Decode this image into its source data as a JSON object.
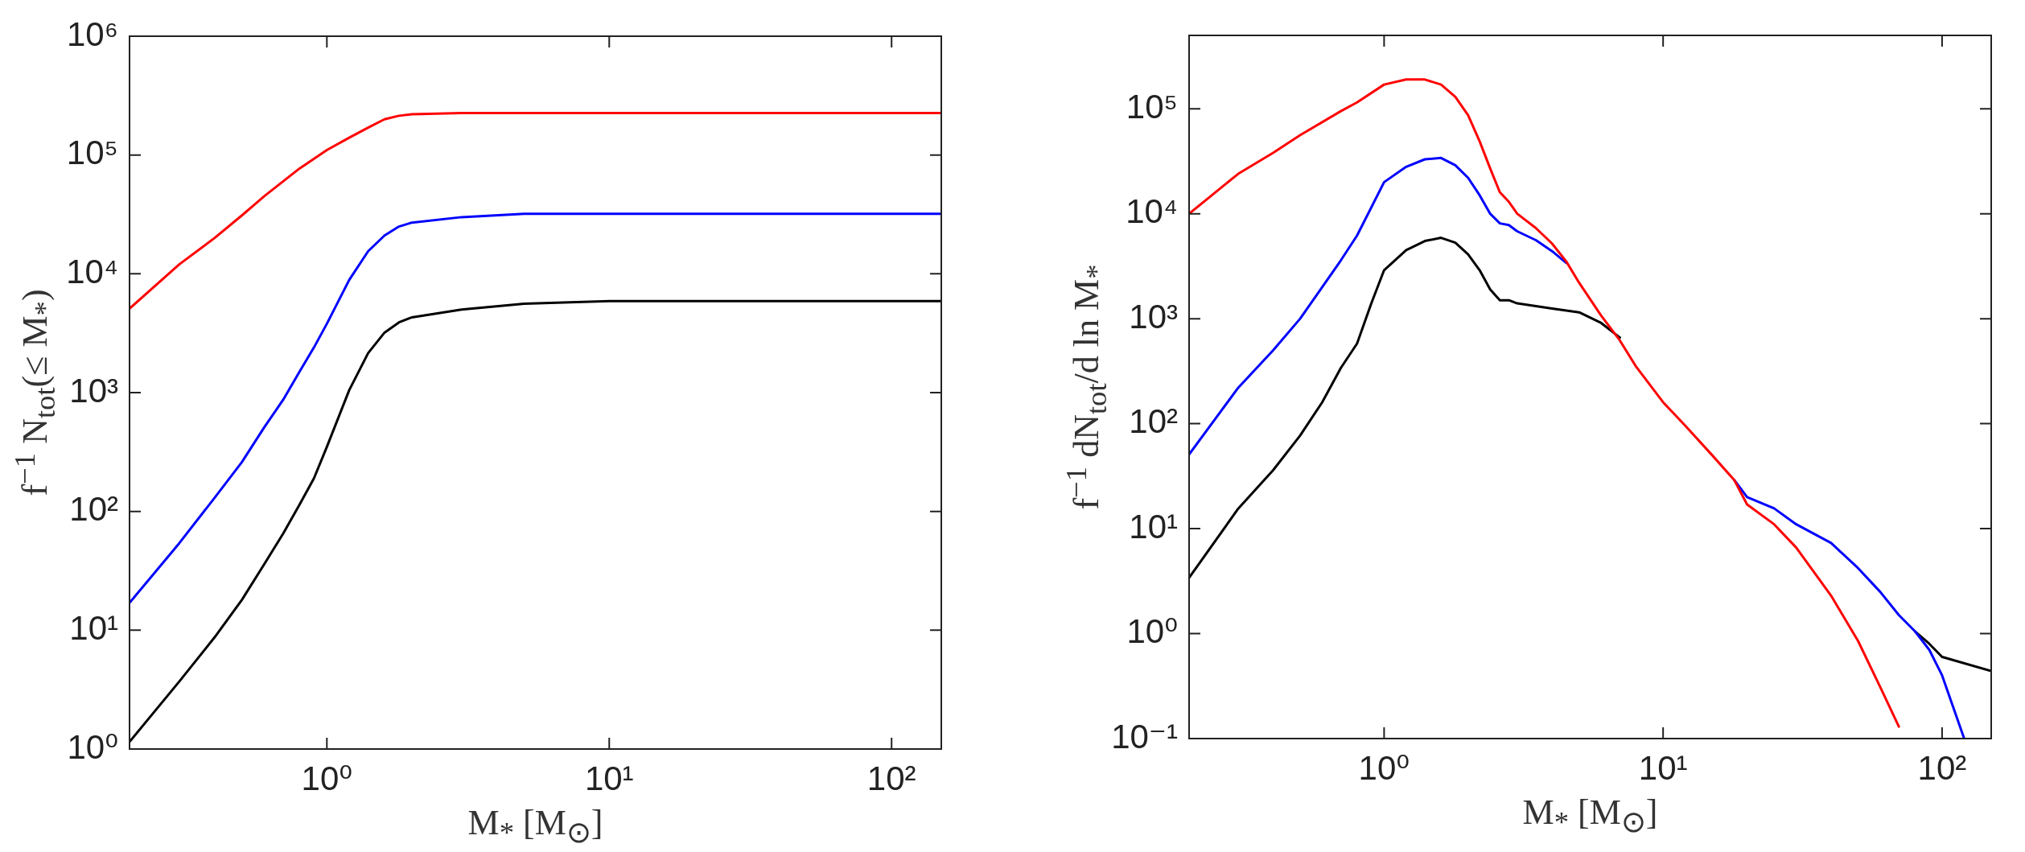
{
  "chart_data": [
    {
      "type": "line",
      "xlabel": "M$_{*}$ [M$_{⊙}$]",
      "ylabel": "f$^{−1}$ N$_{tot}$(≤ M$_{*}$)",
      "log": "xy",
      "xlim": [
        0.2,
        150
      ],
      "ylim": [
        1,
        1000000
      ],
      "xticks": [
        {
          "value": 1,
          "label": "10⁰"
        },
        {
          "value": 10,
          "label": "10¹"
        },
        {
          "value": 100,
          "label": "10²"
        }
      ],
      "yticks": [
        {
          "value": 1,
          "label": "10⁰"
        },
        {
          "value": 10,
          "label": "10¹"
        },
        {
          "value": 100,
          "label": "10²"
        },
        {
          "value": 1000,
          "label": "10³"
        },
        {
          "value": 10000,
          "label": "10⁴"
        },
        {
          "value": 100000,
          "label": "10⁵"
        },
        {
          "value": 1000000,
          "label": "10⁶"
        }
      ],
      "series": [
        {
          "color": "#ff0000",
          "x": [
            0.2,
            0.3,
            0.4,
            0.5,
            0.6,
            0.8,
            1.0,
            1.2,
            1.4,
            1.6,
            1.8,
            2,
            3,
            150
          ],
          "values": [
            5100,
            12000,
            20000,
            31000,
            45000,
            77000,
            110000,
            140000,
            170000,
            200000,
            214000,
            220000,
            226000,
            226000
          ]
        },
        {
          "color": "#0000ff",
          "x": [
            0.2,
            0.3,
            0.4,
            0.5,
            0.6,
            0.7,
            0.8,
            0.9,
            1.0,
            1.2,
            1.4,
            1.6,
            1.8,
            2,
            3,
            5,
            150
          ],
          "values": [
            17,
            54,
            130,
            260,
            510,
            870,
            1500,
            2400,
            3800,
            8900,
            15500,
            21000,
            25000,
            27000,
            30000,
            32000,
            32000
          ]
        },
        {
          "color": "#000000",
          "x": [
            0.2,
            0.3,
            0.4,
            0.5,
            0.6,
            0.7,
            0.8,
            0.9,
            1.0,
            1.2,
            1.4,
            1.6,
            1.8,
            2,
            3,
            5,
            10,
            150
          ],
          "values": [
            1.15,
            3.7,
            8.7,
            18,
            36,
            65,
            114,
            190,
            350,
            1050,
            2150,
            3200,
            3900,
            4300,
            5000,
            5600,
            5900,
            5900
          ]
        }
      ]
    },
    {
      "type": "line",
      "xlabel": "M$_{*}$ [M$_{⊙}$]",
      "ylabel": "f$^{−1}$ dN$_{tot}$/d ln M$_{*}$",
      "log": "xy",
      "xlim": [
        0.2,
        150
      ],
      "ylim": [
        0.1,
        500000
      ],
      "xticks": [
        {
          "value": 1,
          "label": "10⁰"
        },
        {
          "value": 10,
          "label": "10¹"
        },
        {
          "value": 100,
          "label": "10²"
        }
      ],
      "yticks": [
        {
          "value": 0.1,
          "label": "10⁻¹"
        },
        {
          "value": 1,
          "label": "10⁰"
        },
        {
          "value": 10,
          "label": "10¹"
        },
        {
          "value": 100,
          "label": "10²"
        },
        {
          "value": 1000,
          "label": "10³"
        },
        {
          "value": 10000,
          "label": "10⁴"
        },
        {
          "value": 100000,
          "label": "10⁵"
        }
      ],
      "series": [
        {
          "color": "#ff0000",
          "x": [
            0.2,
            0.3,
            0.4,
            0.5,
            0.7,
            0.8,
            1.0,
            1.2,
            1.4,
            1.6,
            1.8,
            2.0,
            2.2,
            2.4,
            2.6,
            2.8,
            3.0,
            3.5,
            4,
            4.5,
            5,
            6,
            7,
            8,
            10,
            12,
            15,
            18,
            20,
            25,
            30,
            40,
            50,
            60,
            70
          ],
          "values": [
            10000,
            24000,
            38000,
            56000,
            95000,
            115000,
            170000,
            190000,
            190000,
            170000,
            130000,
            87000,
            49000,
            27000,
            16000,
            13000,
            10000,
            7300,
            5200,
            3500,
            2200,
            1070,
            620,
            350,
            160,
            96,
            50,
            29,
            17,
            11,
            6.6,
            2.3,
            0.85,
            0.31,
            0.13
          ]
        },
        {
          "color": "#0000ff",
          "x": [
            0.2,
            0.3,
            0.4,
            0.5,
            0.6,
            0.7,
            0.8,
            1.0,
            1.2,
            1.4,
            1.6,
            1.8,
            2.0,
            2.2,
            2.4,
            2.6,
            2.8,
            3.0,
            3.5,
            4,
            4.5,
            5,
            6,
            7,
            8,
            10,
            12,
            15,
            18,
            20,
            25,
            30,
            40,
            50,
            60,
            70,
            80,
            90,
            100,
            120
          ],
          "values": [
            51,
            220,
            500,
            1000,
            2000,
            3600,
            6200,
            20000,
            28000,
            33000,
            34000,
            29000,
            22000,
            15000,
            10000,
            8100,
            7800,
            6800,
            5600,
            4400,
            3400,
            null,
            null,
            null,
            null,
            null,
            null,
            null,
            29,
            20,
            15.6,
            11,
            7.3,
            4.2,
            2.5,
            1.5,
            1.05,
            0.7,
            0.4,
            0.1
          ]
        },
        {
          "color": "#000000",
          "x": [
            0.2,
            0.3,
            0.4,
            0.5,
            0.6,
            0.7,
            0.8,
            0.9,
            1.0,
            1.2,
            1.4,
            1.6,
            1.8,
            2.0,
            2.2,
            2.4,
            2.6,
            2.8,
            3,
            4,
            5,
            6,
            7,
            8,
            10,
            12,
            15,
            18,
            20,
            25,
            30,
            40,
            50,
            60,
            70,
            80,
            90,
            100,
            150
          ],
          "values": [
            3.4,
            15.5,
            36,
            77,
            160,
            340,
            580,
            1400,
            2900,
            4500,
            5500,
            5900,
            5300,
            4100,
            2900,
            1900,
            1500,
            1500,
            1400,
            1250,
            1150,
            910,
            660,
            null,
            null,
            null,
            null,
            null,
            null,
            null,
            null,
            null,
            null,
            null,
            null,
            1.05,
            0.8,
            0.6,
            0.44
          ]
        }
      ]
    }
  ]
}
